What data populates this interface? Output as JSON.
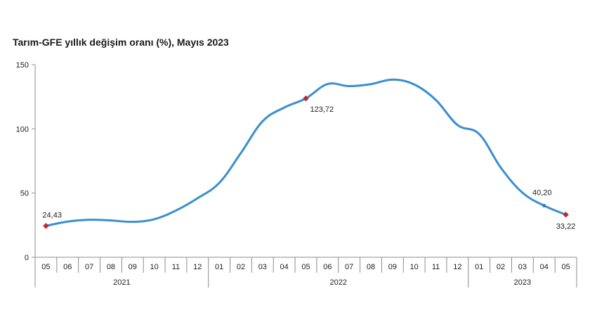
{
  "chart_data": {
    "type": "line",
    "title": "Tarım-GFE yıllık değişim oranı (%), Mayıs 2023",
    "xlabel": "",
    "ylabel": "",
    "ylim": [
      0,
      150
    ],
    "yticks": [
      "0",
      "50",
      "100",
      "150"
    ],
    "grid": false,
    "months": [
      "05",
      "06",
      "07",
      "08",
      "09",
      "10",
      "11",
      "12",
      "01",
      "02",
      "03",
      "04",
      "05",
      "06",
      "07",
      "08",
      "09",
      "10",
      "11",
      "12",
      "01",
      "02",
      "03",
      "04",
      "05"
    ],
    "years": [
      {
        "label": "2021",
        "start": 0,
        "end": 7
      },
      {
        "label": "2022",
        "start": 8,
        "end": 19
      },
      {
        "label": "2023",
        "start": 20,
        "end": 24
      }
    ],
    "series": [
      {
        "values": [
          24.43,
          27.8,
          29.2,
          28.7,
          27.6,
          29.6,
          36.4,
          46.0,
          57.9,
          81.2,
          105.9,
          116.6,
          123.72,
          134.9,
          133.3,
          134.8,
          138.4,
          134.6,
          122.5,
          103.0,
          96.0,
          69.8,
          50.3,
          40.2,
          33.22
        ],
        "color": "#3a8fd0"
      }
    ],
    "markers": [
      {
        "index": 0,
        "label": "24,43"
      },
      {
        "index": 12,
        "label": "123,72"
      },
      {
        "index": 23,
        "label": "40,20"
      },
      {
        "index": 24,
        "label": "33,22"
      }
    ],
    "marker_color": "#c0282d",
    "axis_color": "#8c8c8c"
  }
}
